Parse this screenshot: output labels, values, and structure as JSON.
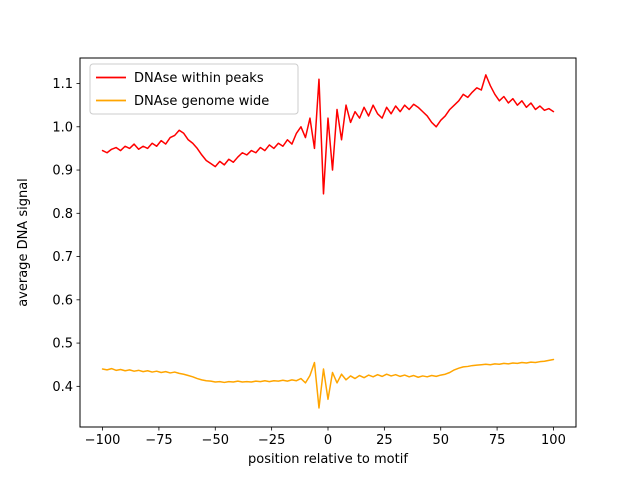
{
  "figure": {
    "background": "#ffffff"
  },
  "chart_data": {
    "type": "line",
    "title": "",
    "xlabel": "position relative to motif",
    "ylabel": "average DNA signal",
    "xlim": [
      -110,
      110
    ],
    "ylim": [
      0.306,
      1.159
    ],
    "grid": false,
    "legend": {
      "position": "upper left",
      "entries": [
        "DNAse within peaks",
        "DNAse genome wide"
      ]
    },
    "xticks": {
      "values": [
        -100,
        -75,
        -50,
        -25,
        0,
        25,
        50,
        75,
        100
      ],
      "labels": [
        "−100",
        "−75",
        "−50",
        "−25",
        "0",
        "25",
        "50",
        "75",
        "100"
      ]
    },
    "yticks": {
      "values": [
        0.4,
        0.5,
        0.6,
        0.7,
        0.8,
        0.9,
        1.0,
        1.1
      ],
      "labels": [
        "0.4",
        "0.5",
        "0.6",
        "0.7",
        "0.8",
        "0.9",
        "1.0",
        "1.1"
      ]
    },
    "x": [
      -100,
      -98,
      -96,
      -94,
      -92,
      -90,
      -88,
      -86,
      -84,
      -82,
      -80,
      -78,
      -76,
      -74,
      -72,
      -70,
      -68,
      -66,
      -64,
      -62,
      -60,
      -58,
      -56,
      -54,
      -52,
      -50,
      -48,
      -46,
      -44,
      -42,
      -40,
      -38,
      -36,
      -34,
      -32,
      -30,
      -28,
      -26,
      -24,
      -22,
      -20,
      -18,
      -16,
      -14,
      -12,
      -10,
      -8,
      -6,
      -4,
      -2,
      0,
      2,
      4,
      6,
      8,
      10,
      12,
      14,
      16,
      18,
      20,
      22,
      24,
      26,
      28,
      30,
      32,
      34,
      36,
      38,
      40,
      42,
      44,
      46,
      48,
      50,
      52,
      54,
      56,
      58,
      60,
      62,
      64,
      66,
      68,
      70,
      72,
      74,
      76,
      78,
      80,
      82,
      84,
      86,
      88,
      90,
      92,
      94,
      96,
      98,
      100
    ],
    "series": [
      {
        "name": "DNAse within peaks",
        "color": "#ff0000",
        "values": [
          0.945,
          0.94,
          0.948,
          0.952,
          0.945,
          0.955,
          0.95,
          0.96,
          0.948,
          0.955,
          0.95,
          0.962,
          0.955,
          0.968,
          0.96,
          0.975,
          0.98,
          0.992,
          0.985,
          0.97,
          0.962,
          0.95,
          0.935,
          0.922,
          0.915,
          0.908,
          0.92,
          0.912,
          0.925,
          0.918,
          0.93,
          0.94,
          0.935,
          0.945,
          0.94,
          0.952,
          0.945,
          0.958,
          0.95,
          0.962,
          0.955,
          0.97,
          0.96,
          0.985,
          1.0,
          0.975,
          1.02,
          0.95,
          1.11,
          0.845,
          1.02,
          0.9,
          1.04,
          0.97,
          1.05,
          1.01,
          1.035,
          1.02,
          1.045,
          1.025,
          1.05,
          1.03,
          1.02,
          1.045,
          1.03,
          1.048,
          1.035,
          1.05,
          1.04,
          1.052,
          1.045,
          1.035,
          1.025,
          1.01,
          1.0,
          1.015,
          1.025,
          1.04,
          1.05,
          1.06,
          1.075,
          1.068,
          1.08,
          1.09,
          1.085,
          1.12,
          1.095,
          1.075,
          1.06,
          1.07,
          1.055,
          1.065,
          1.05,
          1.06,
          1.045,
          1.055,
          1.04,
          1.048,
          1.038,
          1.042,
          1.035
        ]
      },
      {
        "name": "DNAse genome wide",
        "color": "#ffa500",
        "values": [
          0.44,
          0.438,
          0.441,
          0.437,
          0.439,
          0.436,
          0.438,
          0.435,
          0.437,
          0.434,
          0.436,
          0.433,
          0.435,
          0.432,
          0.434,
          0.431,
          0.433,
          0.43,
          0.428,
          0.425,
          0.422,
          0.418,
          0.415,
          0.413,
          0.412,
          0.41,
          0.411,
          0.409,
          0.411,
          0.41,
          0.412,
          0.41,
          0.411,
          0.41,
          0.412,
          0.411,
          0.413,
          0.411,
          0.413,
          0.412,
          0.414,
          0.412,
          0.415,
          0.413,
          0.418,
          0.408,
          0.425,
          0.455,
          0.35,
          0.44,
          0.37,
          0.432,
          0.408,
          0.428,
          0.415,
          0.424,
          0.418,
          0.425,
          0.42,
          0.426,
          0.422,
          0.427,
          0.423,
          0.428,
          0.424,
          0.427,
          0.423,
          0.426,
          0.422,
          0.425,
          0.421,
          0.424,
          0.422,
          0.425,
          0.423,
          0.426,
          0.428,
          0.432,
          0.438,
          0.442,
          0.445,
          0.446,
          0.448,
          0.449,
          0.45,
          0.451,
          0.45,
          0.452,
          0.451,
          0.453,
          0.452,
          0.454,
          0.453,
          0.455,
          0.454,
          0.456,
          0.455,
          0.457,
          0.458,
          0.46,
          0.462
        ]
      }
    ]
  }
}
